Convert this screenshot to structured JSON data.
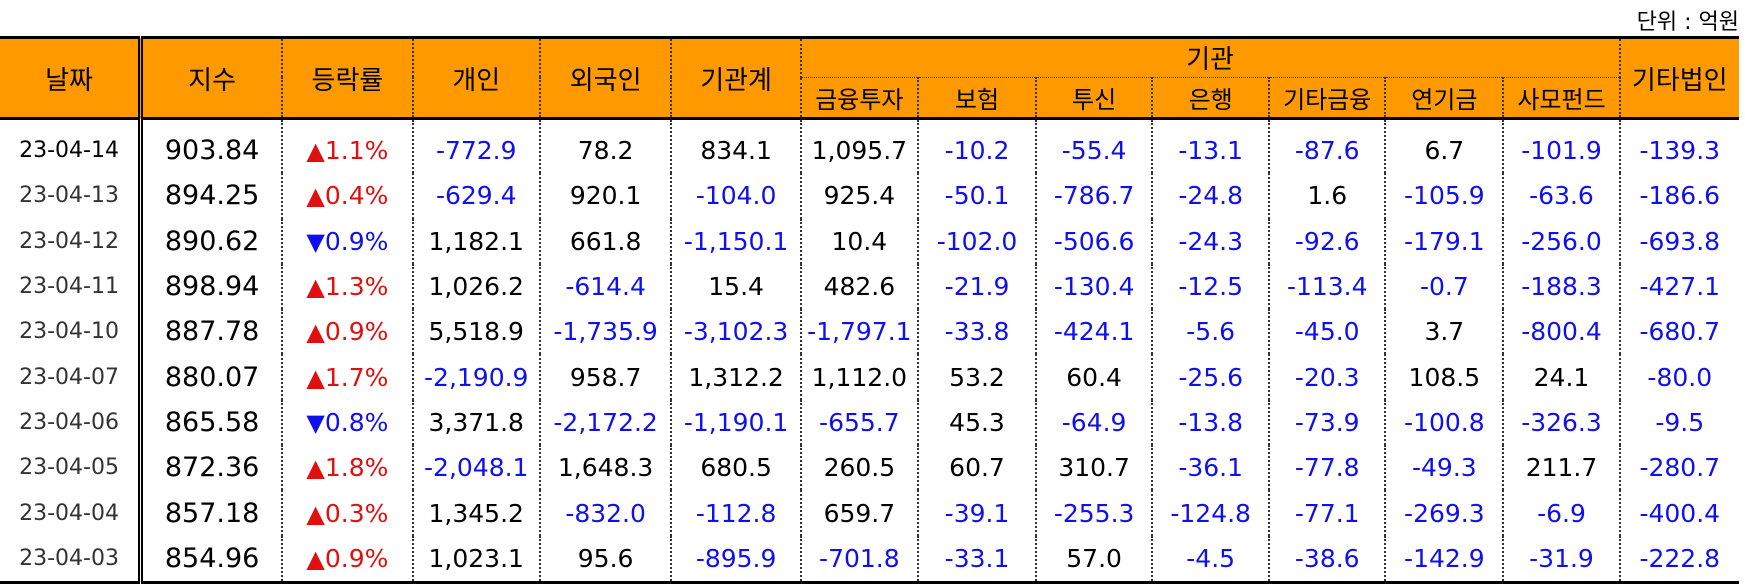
{
  "unit_label": "단위 : 억원",
  "headers": {
    "date": "날짜",
    "index": "지수",
    "change": "등락률",
    "individual": "개인",
    "foreign": "외국인",
    "inst_total": "기관계",
    "institution": "기관",
    "sub": [
      "금융투자",
      "보험",
      "투신",
      "은행",
      "기타금융",
      "연기금",
      "사모펀드"
    ],
    "other_corp": "기타법인"
  },
  "rows": [
    {
      "date": "23-04-14",
      "index": "903.84",
      "dir": "up",
      "chg": "1.1%",
      "v": [
        "-772.9",
        "78.2",
        "834.1",
        "1,095.7",
        "-10.2",
        "-55.4",
        "-13.1",
        "-87.6",
        "6.7",
        "-101.9",
        "-139.3"
      ]
    },
    {
      "date": "23-04-13",
      "index": "894.25",
      "dir": "up",
      "chg": "0.4%",
      "v": [
        "-629.4",
        "920.1",
        "-104.0",
        "925.4",
        "-50.1",
        "-786.7",
        "-24.8",
        "1.6",
        "-105.9",
        "-63.6",
        "-186.6"
      ]
    },
    {
      "date": "23-04-12",
      "index": "890.62",
      "dir": "down",
      "chg": "0.9%",
      "v": [
        "1,182.1",
        "661.8",
        "-1,150.1",
        "10.4",
        "-102.0",
        "-506.6",
        "-24.3",
        "-92.6",
        "-179.1",
        "-256.0",
        "-693.8"
      ]
    },
    {
      "date": "23-04-11",
      "index": "898.94",
      "dir": "up",
      "chg": "1.3%",
      "v": [
        "1,026.2",
        "-614.4",
        "15.4",
        "482.6",
        "-21.9",
        "-130.4",
        "-12.5",
        "-113.4",
        "-0.7",
        "-188.3",
        "-427.1"
      ]
    },
    {
      "date": "23-04-10",
      "index": "887.78",
      "dir": "up",
      "chg": "0.9%",
      "v": [
        "5,518.9",
        "-1,735.9",
        "-3,102.3",
        "-1,797.1",
        "-33.8",
        "-424.1",
        "-5.6",
        "-45.0",
        "3.7",
        "-800.4",
        "-680.7"
      ]
    },
    {
      "date": "23-04-07",
      "index": "880.07",
      "dir": "up",
      "chg": "1.7%",
      "v": [
        "-2,190.9",
        "958.7",
        "1,312.2",
        "1,112.0",
        "53.2",
        "60.4",
        "-25.6",
        "-20.3",
        "108.5",
        "24.1",
        "-80.0"
      ]
    },
    {
      "date": "23-04-06",
      "index": "865.58",
      "dir": "down",
      "chg": "0.8%",
      "v": [
        "3,371.8",
        "-2,172.2",
        "-1,190.1",
        "-655.7",
        "45.3",
        "-64.9",
        "-13.8",
        "-73.9",
        "-100.8",
        "-326.3",
        "-9.5"
      ]
    },
    {
      "date": "23-04-05",
      "index": "872.36",
      "dir": "up",
      "chg": "1.8%",
      "v": [
        "-2,048.1",
        "1,648.3",
        "680.5",
        "260.5",
        "60.7",
        "310.7",
        "-36.1",
        "-77.8",
        "-49.3",
        "211.7",
        "-280.7"
      ]
    },
    {
      "date": "23-04-04",
      "index": "857.18",
      "dir": "up",
      "chg": "0.3%",
      "v": [
        "1,345.2",
        "-832.0",
        "-112.8",
        "659.7",
        "-39.1",
        "-255.3",
        "-124.8",
        "-77.1",
        "-269.3",
        "-6.9",
        "-400.4"
      ]
    },
    {
      "date": "23-04-03",
      "index": "854.96",
      "dir": "up",
      "chg": "0.9%",
      "v": [
        "1,023.1",
        "95.6",
        "-895.9",
        "-701.8",
        "-33.1",
        "57.0",
        "-4.5",
        "-38.6",
        "-142.9",
        "-31.9",
        "-222.8"
      ]
    }
  ],
  "icons": {
    "up": "triangle-up-icon",
    "down": "triangle-down-icon"
  },
  "colors": {
    "header_bg": "#FF9900",
    "negative": "#1010EE",
    "up": "#E01010",
    "down": "#1010EE"
  }
}
